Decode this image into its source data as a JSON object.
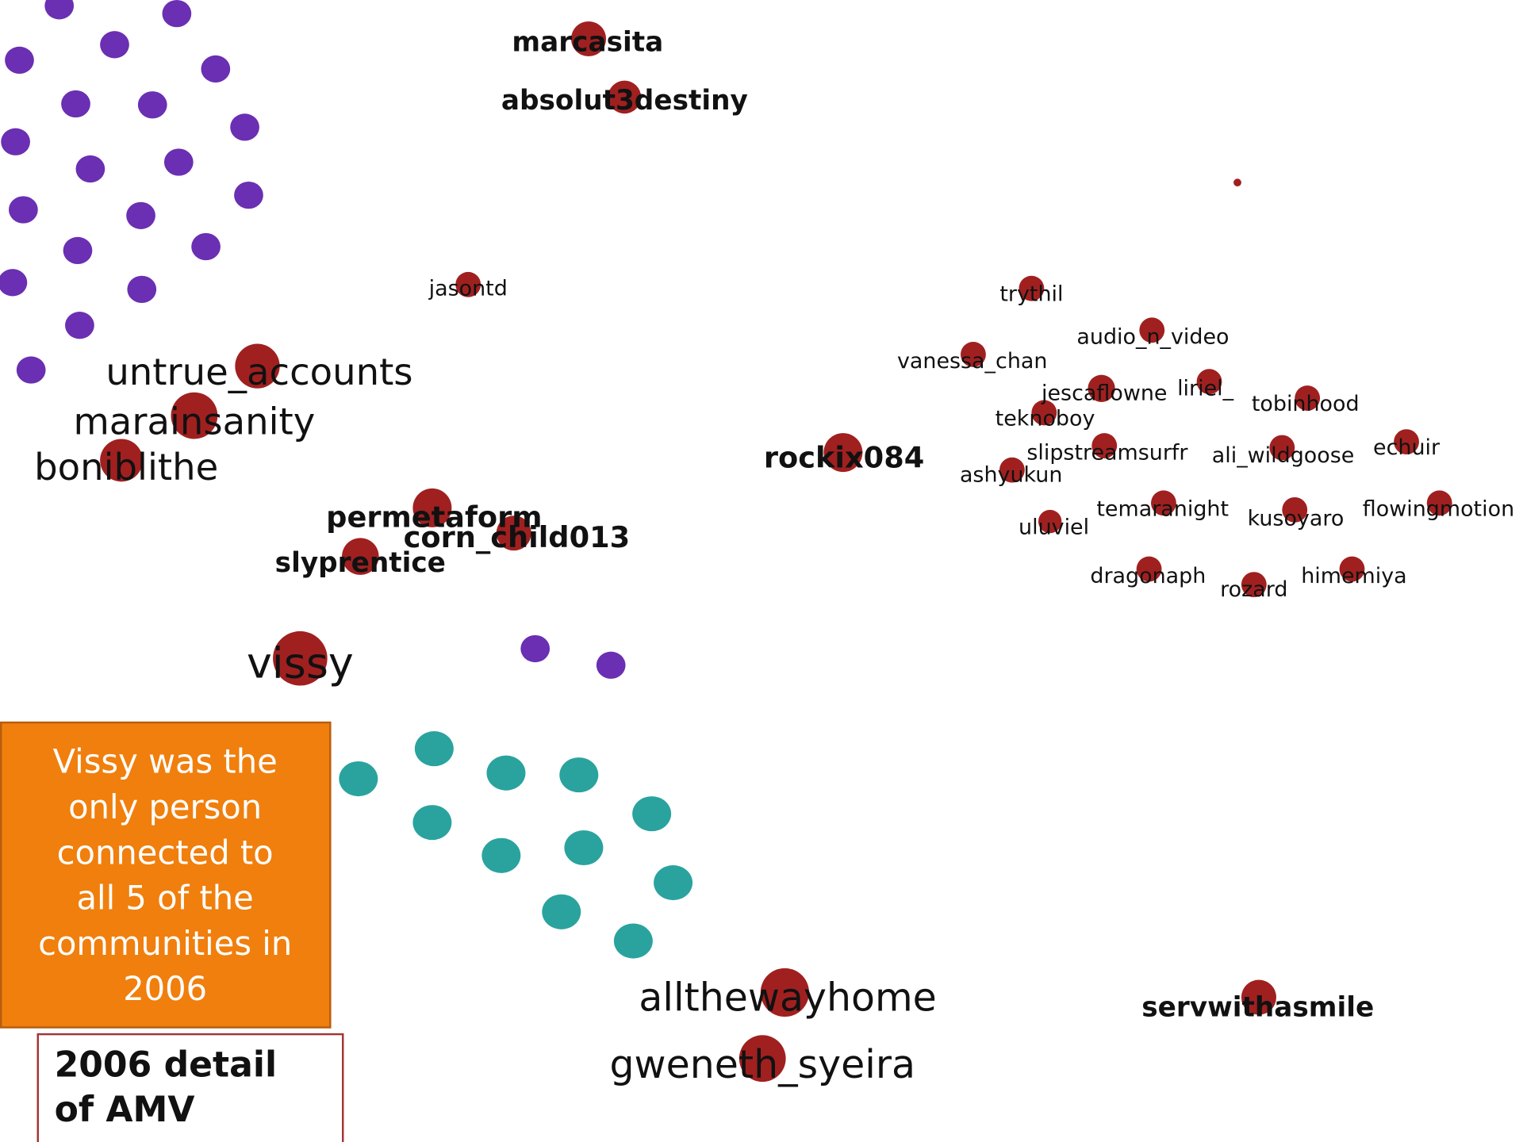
{
  "nodes": [
    {
      "label": "marcasita"
    },
    {
      "label": "absolut3destiny"
    },
    {
      "label": "jasontd"
    },
    {
      "label": "untrue_accounts"
    },
    {
      "label": "marainsanity"
    },
    {
      "label": "boniblithe"
    },
    {
      "label": "permetaform"
    },
    {
      "label": "corn_child013"
    },
    {
      "label": "slyprentice"
    },
    {
      "label": "vissy"
    },
    {
      "label": "rockix084"
    },
    {
      "label": "trythil"
    },
    {
      "label": "audio_n_video"
    },
    {
      "label": "vanessa_chan"
    },
    {
      "label": "jescaflowne"
    },
    {
      "label": "liriel_"
    },
    {
      "label": "tobinhood"
    },
    {
      "label": "teknoboy"
    },
    {
      "label": "slipstreamsurfr"
    },
    {
      "label": "ali_wildgoose"
    },
    {
      "label": "echuir"
    },
    {
      "label": "ashyukun"
    },
    {
      "label": "temaranight"
    },
    {
      "label": "kusoyaro"
    },
    {
      "label": "flowingmotion"
    },
    {
      "label": "uluviel"
    },
    {
      "label": "dragonaph"
    },
    {
      "label": "rozard"
    },
    {
      "label": "himemiya"
    },
    {
      "label": "allthewayhome"
    },
    {
      "label": "gweneth_syeira"
    },
    {
      "label": "servwithasmile"
    }
  ],
  "callout": {
    "lines": [
      "Vissy was the",
      "only person",
      "connected to",
      "all 5 of the",
      "communities in",
      "2006"
    ]
  },
  "caption": {
    "lines": [
      "2006 detail",
      "of AMV"
    ]
  }
}
